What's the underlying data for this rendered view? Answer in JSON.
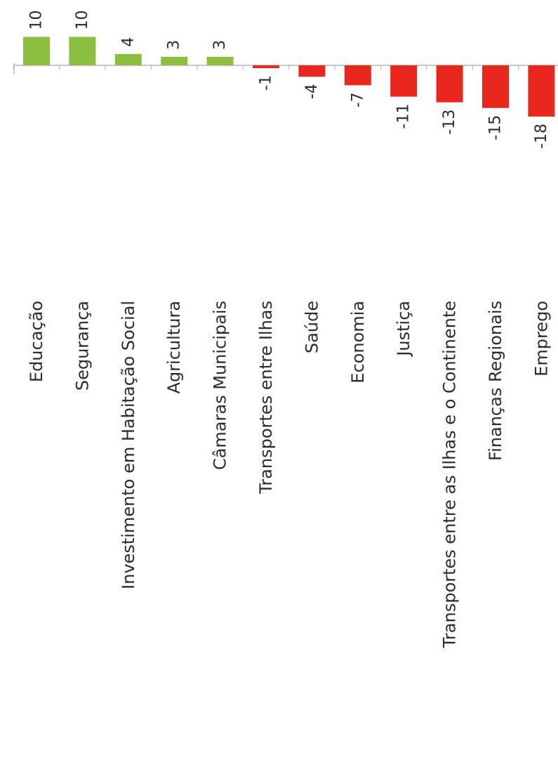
{
  "chart_data": {
    "type": "bar",
    "orientation": "vertical",
    "rotation": "image rotated 90 degrees counter-clockwise",
    "categories": [
      "Educação",
      "Segurança",
      "Investimento em Habitação Social",
      "Agricultura",
      "Câmaras Municipais",
      "Transportes entre Ilhas",
      "Saúde",
      "Economia",
      "Justiça",
      "Transportes entre as Ilhas e o Continente",
      "Finanças  Regionais",
      "Emprego"
    ],
    "values": [
      10,
      10,
      4,
      3,
      3,
      -1,
      -4,
      -7,
      -11,
      -13,
      -15,
      -18
    ],
    "value_labels": [
      "10",
      "10",
      "4",
      "3",
      "3",
      "-1",
      "-4",
      "-7",
      "-11",
      "-13",
      "-15",
      "-18"
    ],
    "colors": {
      "positive": "#8cbf3f",
      "negative": "#e8281e",
      "baseline": "#b8b8b8"
    },
    "title": "",
    "xlabel": "",
    "ylabel": "",
    "grid": false,
    "legend": "none"
  }
}
